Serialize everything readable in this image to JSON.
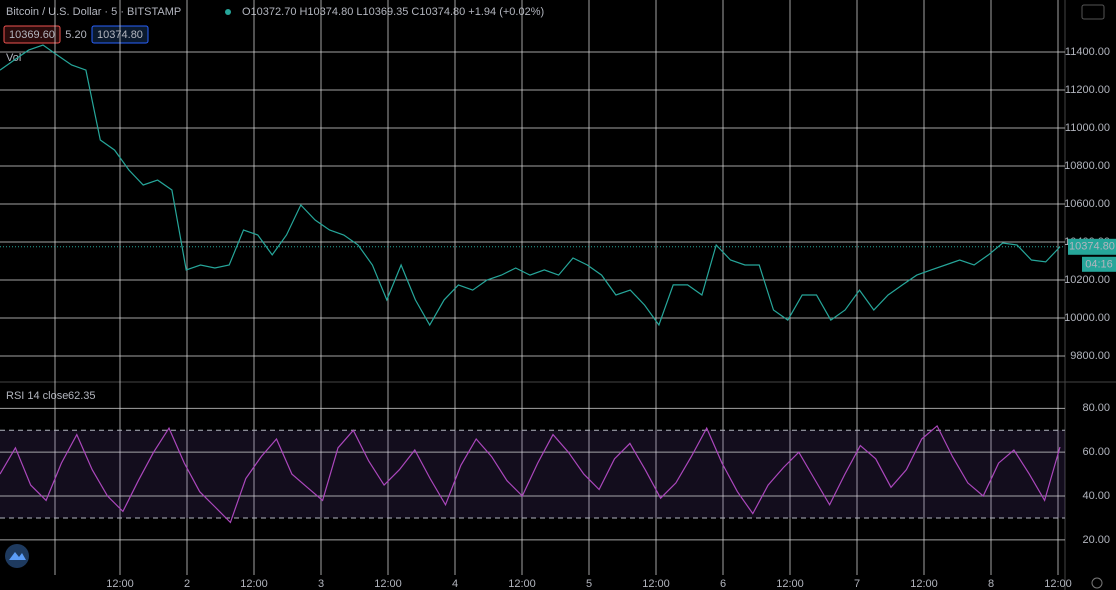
{
  "header": {
    "symbol": "Bitcoin / U.S. Dollar · 5 · BITSTAMP",
    "ohlc": "O10372.70 H10374.80 L10369.35 C10374.80 +1.94 (+0.02%)",
    "bid": "10369.60",
    "spread": "5.20",
    "ask": "10374.80",
    "volume_label": "Vol",
    "price_tag": "10374.80",
    "countdown": "04:16"
  },
  "x_labels": [
    "12:00",
    "2",
    "12:00",
    "3",
    "12:00",
    "4",
    "12:00",
    "5",
    "12:00",
    "6",
    "12:00",
    "7",
    "12:00",
    "8",
    "12:00"
  ],
  "chart_data": [
    {
      "type": "line",
      "color": "#26a69a",
      "ylim": [
        9663,
        11674
      ],
      "yticks": [
        {
          "value": 9800,
          "label": "9800.00"
        },
        {
          "value": 10000,
          "label": "10000.00"
        },
        {
          "value": 10200,
          "label": "10200.00"
        },
        {
          "value": 10400,
          "label": "10400.00"
        },
        {
          "value": 10600,
          "label": "10600.00"
        },
        {
          "value": 10800,
          "label": "10800.00"
        },
        {
          "value": 11000,
          "label": "11000.00"
        },
        {
          "value": 11200,
          "label": "11200.00"
        },
        {
          "value": 11400,
          "label": "11400.00"
        }
      ],
      "values": [
        11305,
        11358,
        11410,
        11437,
        11384,
        11332,
        11305,
        10937,
        10884,
        10779,
        10700,
        10726,
        10674,
        10253,
        10279,
        10263,
        10279,
        10463,
        10437,
        10332,
        10437,
        10595,
        10516,
        10463,
        10437,
        10384,
        10279,
        10095,
        10279,
        10095,
        9963,
        10095,
        10174,
        10147,
        10200,
        10226,
        10263,
        10226,
        10253,
        10226,
        10316,
        10279,
        10226,
        10121,
        10147,
        10068,
        9963,
        10174,
        10174,
        10121,
        10384,
        10305,
        10279,
        10279,
        10042,
        9989,
        10121,
        10121,
        9989,
        10042,
        10147,
        10042,
        10121,
        10174,
        10226,
        10253,
        10279,
        10305,
        10279,
        10332,
        10395,
        10384,
        10305,
        10295,
        10374.8
      ]
    },
    {
      "type": "line",
      "title": "RSI 14 close",
      "color": "#ab47bc",
      "ylim": [
        4,
        92
      ],
      "yticks": [
        {
          "value": 20,
          "label": "20.00"
        },
        {
          "value": 40,
          "label": "40.00"
        },
        {
          "value": 60,
          "label": "60.00"
        },
        {
          "value": 80,
          "label": "80.00"
        }
      ],
      "bands": [
        30,
        70
      ],
      "values": [
        50,
        62,
        45,
        38,
        55,
        68,
        52,
        40,
        33,
        47,
        60,
        71,
        55,
        42,
        35,
        28,
        48,
        58,
        66,
        50,
        44,
        38,
        62,
        70,
        56,
        45,
        52,
        61,
        48,
        36,
        54,
        66,
        58,
        47,
        40,
        55,
        68,
        60,
        50,
        43,
        57,
        64,
        52,
        39,
        46,
        58,
        71,
        55,
        42,
        32,
        45,
        53,
        60,
        48,
        36,
        50,
        63,
        57,
        44,
        52,
        66,
        72,
        58,
        46,
        40,
        55,
        61,
        50,
        38,
        62.35
      ]
    }
  ]
}
